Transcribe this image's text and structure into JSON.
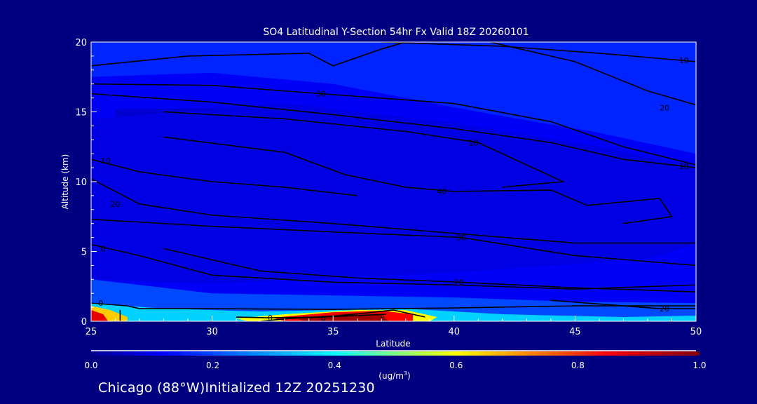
{
  "chart_data": {
    "type": "heatmap",
    "title": "SO4 Latitudinal Y-Section 54hr  Fx Valid 18Z 20260101",
    "xlabel": "Latitude",
    "ylabel": "Altitude (km)",
    "xlim": [
      25,
      50
    ],
    "ylim": [
      0,
      20
    ],
    "xticks": [
      "25",
      "30",
      "35",
      "40",
      "45",
      "50"
    ],
    "yticks": [
      "0",
      "5",
      "10",
      "15",
      "20"
    ],
    "colorbar": {
      "label": "(ug/m",
      "label_sup": "3",
      "label_end": ")",
      "range": [
        0,
        1
      ],
      "ticks": [
        "0.0",
        "0.2",
        "0.4",
        "0.6",
        "0.8",
        "1.0"
      ],
      "colors": [
        "#000090",
        "#0000ff",
        "#00ffff",
        "#ffff00",
        "#ff0000",
        "#800000"
      ]
    },
    "filled_regions": [
      {
        "value": 0.11,
        "points": [
          [
            25,
            0
          ],
          [
            25,
            20
          ],
          [
            50,
            20
          ],
          [
            50,
            0
          ]
        ]
      },
      {
        "value": 0.16,
        "points": [
          [
            25,
            17.5
          ],
          [
            25,
            20
          ],
          [
            50,
            20
          ],
          [
            50,
            12
          ],
          [
            46,
            13.5
          ],
          [
            41,
            15
          ],
          [
            35,
            17
          ],
          [
            30,
            17.8
          ]
        ]
      },
      {
        "value": 0.07,
        "points": [
          [
            26,
            15.2
          ],
          [
            33,
            15.3
          ],
          [
            40,
            13.5
          ],
          [
            44,
            11.5
          ],
          [
            46.5,
            9.5
          ],
          [
            44,
            8.3
          ],
          [
            37,
            8.5
          ],
          [
            30,
            9.5
          ],
          [
            26,
            11.5
          ]
        ]
      },
      {
        "value": 0.09,
        "points": [
          [
            25,
            14.5
          ],
          [
            25,
            3
          ],
          [
            30,
            2.7
          ],
          [
            40,
            3.5
          ],
          [
            48,
            4.5
          ],
          [
            50,
            5.5
          ],
          [
            50,
            11
          ],
          [
            46,
            12.5
          ],
          [
            40,
            14.2
          ],
          [
            33,
            15.6
          ]
        ]
      },
      {
        "value": 0.2,
        "points": [
          [
            25,
            3
          ],
          [
            30,
            2
          ],
          [
            40,
            1.7
          ],
          [
            45,
            1.4
          ],
          [
            50,
            1.3
          ],
          [
            50,
            0
          ],
          [
            25,
            0
          ]
        ]
      },
      {
        "value": 0.35,
        "points": [
          [
            25,
            1.3
          ],
          [
            28,
            0.9
          ],
          [
            32,
            0.7
          ],
          [
            38,
            0.9
          ],
          [
            42,
            0.5
          ],
          [
            47,
            0.3
          ],
          [
            50,
            0.4
          ],
          [
            50,
            0
          ],
          [
            25,
            0
          ]
        ]
      },
      {
        "value": 0.6,
        "points": [
          [
            31,
            0.2
          ],
          [
            33,
            0.5
          ],
          [
            36,
            0.8
          ],
          [
            38,
            0.8
          ],
          [
            39.3,
            0.3
          ],
          [
            39,
            0
          ],
          [
            31.5,
            0
          ]
        ]
      },
      {
        "value": 0.85,
        "points": [
          [
            32.5,
            0.25
          ],
          [
            35,
            0.65
          ],
          [
            37,
            0.75
          ],
          [
            38.3,
            0.5
          ],
          [
            38.3,
            0
          ],
          [
            33,
            0
          ]
        ]
      },
      {
        "value": 0.96,
        "points": [
          [
            33.5,
            0.2
          ],
          [
            35.5,
            0.55
          ],
          [
            37,
            0.55
          ],
          [
            37.3,
            0
          ],
          [
            33.8,
            0
          ]
        ]
      },
      {
        "value": 0.65,
        "points": [
          [
            25,
            1.1
          ],
          [
            25.8,
            0.8
          ],
          [
            26.5,
            0.3
          ],
          [
            26.5,
            0
          ],
          [
            25,
            0
          ]
        ]
      },
      {
        "value": 0.88,
        "points": [
          [
            25,
            0.8
          ],
          [
            25.5,
            0.5
          ],
          [
            25.7,
            0
          ],
          [
            25,
            0
          ]
        ]
      }
    ],
    "contours": [
      {
        "label": "10",
        "points": [
          [
            37,
            20
          ],
          [
            42,
            19.7
          ],
          [
            46,
            19.2
          ],
          [
            50,
            18.6
          ]
        ],
        "label_at": [
          49.5,
          18.7
        ]
      },
      {
        "label": "20",
        "points": [
          [
            41.5,
            20
          ],
          [
            45,
            18.6
          ],
          [
            48,
            16.5
          ],
          [
            50,
            15.5
          ]
        ],
        "label_at": [
          48.7,
          15.3
        ]
      },
      {
        "label": "30",
        "points": [
          [
            25,
            17
          ],
          [
            30,
            16.9
          ],
          [
            34.5,
            16.3
          ],
          [
            40,
            15.6
          ],
          [
            44,
            14.3
          ],
          [
            47,
            12.5
          ],
          [
            50,
            11.2
          ]
        ],
        "label_at": [
          34.5,
          16.3
        ]
      },
      {
        "label": "",
        "points": [
          [
            25,
            18.3
          ],
          [
            29,
            19
          ],
          [
            34,
            19.2
          ],
          [
            35,
            18.3
          ],
          [
            37,
            19.5
          ],
          [
            38,
            20
          ]
        ],
        "label_at": null
      },
      {
        "label": "10",
        "points": [
          [
            25,
            16.3
          ],
          [
            30,
            15.7
          ],
          [
            35,
            14.8
          ],
          [
            40,
            13.8
          ],
          [
            44,
            12.8
          ],
          [
            47,
            11.6
          ],
          [
            50,
            11
          ]
        ],
        "label_at": [
          49.5,
          11.1
        ]
      },
      {
        "label": "10",
        "points": [
          [
            28,
            15
          ],
          [
            33,
            14.5
          ],
          [
            38,
            13.6
          ],
          [
            41,
            12.8
          ],
          [
            43,
            11.2
          ],
          [
            44.5,
            10
          ],
          [
            42,
            9.6
          ]
        ],
        "label_at": [
          40.8,
          12.8
        ]
      },
      {
        "label": "40",
        "points": [
          [
            28,
            13.2
          ],
          [
            33,
            12.1
          ],
          [
            35.5,
            10.5
          ],
          [
            38,
            9.6
          ],
          [
            40,
            9.3
          ],
          [
            44,
            9.4
          ],
          [
            45.5,
            8.3
          ],
          [
            48.5,
            8.8
          ],
          [
            49,
            7.5
          ],
          [
            47,
            7
          ]
        ],
        "label_at": [
          39.5,
          9.3
        ]
      },
      {
        "label": "10",
        "points": [
          [
            25,
            11.6
          ],
          [
            27,
            10.7
          ],
          [
            30,
            10
          ],
          [
            33,
            9.6
          ],
          [
            36,
            9
          ]
        ],
        "label_at": [
          25.6,
          11.5
        ]
      },
      {
        "label": "20",
        "points": [
          [
            25,
            10.2
          ],
          [
            27,
            8.4
          ],
          [
            30,
            7.6
          ],
          [
            35,
            7
          ],
          [
            40,
            6.3
          ],
          [
            45,
            5.6
          ],
          [
            50,
            5.6
          ]
        ],
        "label_at": [
          26,
          8.4
        ]
      },
      {
        "label": "30",
        "points": [
          [
            25,
            7.3
          ],
          [
            30,
            6.8
          ],
          [
            35,
            6.4
          ],
          [
            40.3,
            6
          ],
          [
            45,
            4.7
          ],
          [
            50,
            4
          ]
        ],
        "label_at": [
          40.3,
          6
        ]
      },
      {
        "label": "0",
        "points": [
          [
            25,
            5.5
          ],
          [
            27,
            4.7
          ],
          [
            30,
            3.3
          ],
          [
            35,
            2.8
          ],
          [
            40,
            2.6
          ],
          [
            45,
            2.3
          ],
          [
            50,
            2.6
          ]
        ],
        "label_at": [
          25.5,
          5.2
        ]
      },
      {
        "label": "20",
        "points": [
          [
            28,
            5.2
          ],
          [
            32,
            3.6
          ],
          [
            36,
            3.1
          ],
          [
            40.2,
            2.8
          ],
          [
            45,
            2.4
          ],
          [
            50,
            2.1
          ]
        ],
        "label_at": [
          40.2,
          2.8
        ]
      },
      {
        "label": "20",
        "points": [
          [
            44,
            1.5
          ],
          [
            47,
            1.1
          ],
          [
            48.5,
            0.9
          ],
          [
            50,
            0.9
          ]
        ],
        "label_at": [
          48.7,
          0.9
        ]
      },
      {
        "label": "0",
        "points": [
          [
            25,
            1.3
          ],
          [
            26.5,
            1.1
          ],
          [
            27,
            0.9
          ],
          [
            30,
            0.9
          ],
          [
            35,
            0.85
          ],
          [
            40,
            0.95
          ],
          [
            45,
            1.1
          ],
          [
            50,
            1.1
          ]
        ],
        "label_at": [
          25.4,
          1.3
        ]
      },
      {
        "label": "0",
        "points": [
          [
            26.2,
            0.8
          ],
          [
            26.2,
            0
          ]
        ],
        "label_at": null
      },
      {
        "label": "0",
        "points": [
          [
            31,
            0.3
          ],
          [
            32.3,
            0.25
          ],
          [
            34.5,
            0.3
          ],
          [
            36,
            0.4
          ],
          [
            37.2,
            0.5
          ]
        ],
        "label_at": [
          32.4,
          0.25
        ]
      },
      {
        "label": "0",
        "points": [
          [
            32,
            0
          ],
          [
            33.2,
            0.2
          ],
          [
            35,
            0.35
          ],
          [
            37.5,
            0.8
          ],
          [
            38.8,
            0.3
          ]
        ],
        "label_at": [
          34.6,
          0.2
        ]
      },
      {
        "label": "",
        "points": [
          [
            37,
            0
          ],
          [
            37,
            0.35
          ]
        ],
        "label_at": null
      }
    ]
  },
  "footer": {
    "location": "Chicago (88°W)Initialized 12Z 20251230"
  }
}
